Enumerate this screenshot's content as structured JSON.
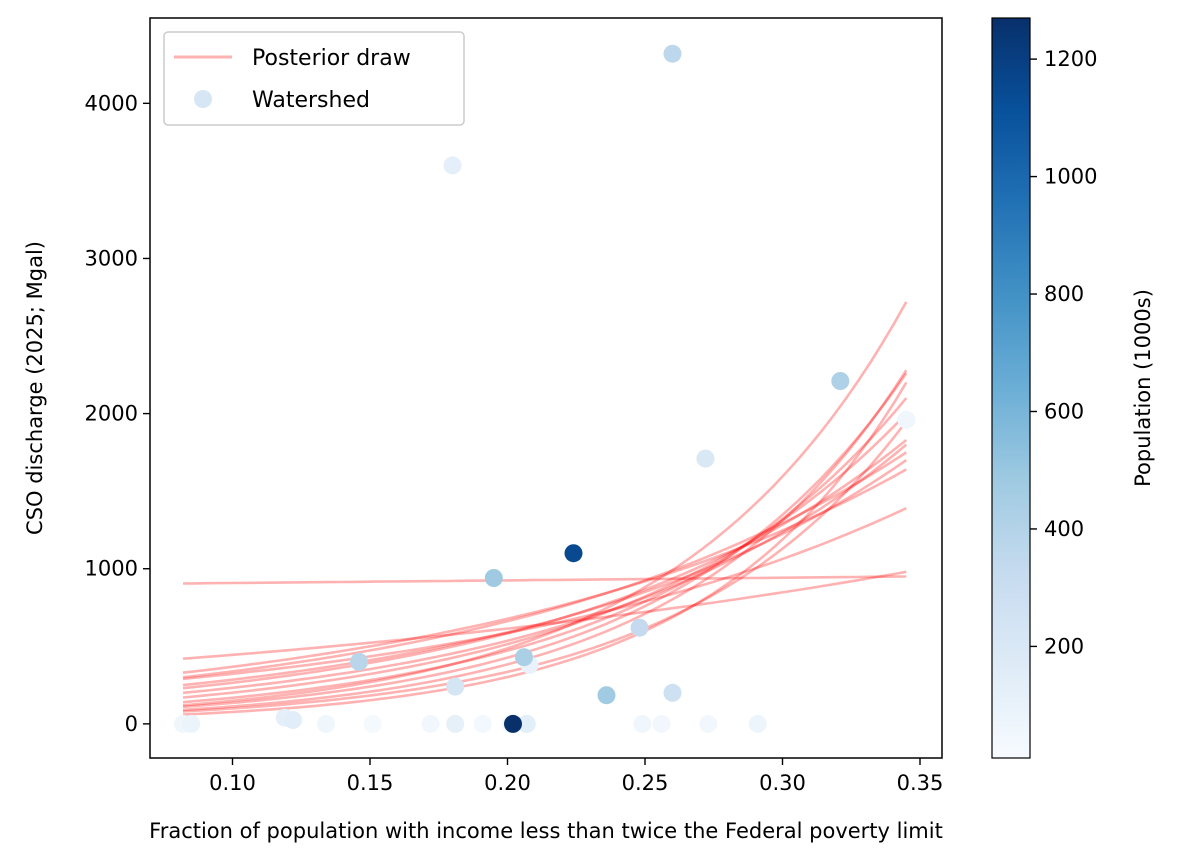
{
  "chart_data": {
    "type": "scatter",
    "xlabel": "Fraction of population with income less than twice the Federal poverty limit",
    "ylabel": "CSO discharge (2025; Mgal)",
    "xlim": [
      0.07,
      0.358
    ],
    "ylim": [
      -220,
      4550
    ],
    "xticks": [
      0.1,
      0.15,
      0.2,
      0.25,
      0.3,
      0.35
    ],
    "xtick_labels": [
      "0.10",
      "0.15",
      "0.20",
      "0.25",
      "0.30",
      "0.35"
    ],
    "yticks": [
      0,
      1000,
      2000,
      3000,
      4000
    ],
    "ytick_labels": [
      "0",
      "1000",
      "2000",
      "3000",
      "4000"
    ],
    "legend": {
      "location": "top-left",
      "line_label": "Posterior draw",
      "point_label": "Watershed"
    },
    "colorbar": {
      "label": "Population (1000s)",
      "range": [
        10,
        1270
      ],
      "ticks": [
        200,
        400,
        600,
        800,
        1000,
        1200
      ],
      "tick_labels": [
        "200",
        "400",
        "600",
        "800",
        "1000",
        "1200"
      ]
    },
    "colors": {
      "line": "#ff0000",
      "cmap_low": "#f7fbff",
      "cmap_high": "#08306b"
    },
    "line_x_range": [
      0.082,
      0.345
    ],
    "posterior_draws": [
      {
        "y_start": 905,
        "y_end": 950
      },
      {
        "y_start": 420,
        "y_end": 980
      },
      {
        "y_start": 290,
        "y_end": 1390
      },
      {
        "y_start": 330,
        "y_end": 1640
      },
      {
        "y_start": 120,
        "y_end": 2720
      },
      {
        "y_start": 60,
        "y_end": 2200
      },
      {
        "y_start": 90,
        "y_end": 2280
      },
      {
        "y_start": 250,
        "y_end": 1700
      },
      {
        "y_start": 170,
        "y_end": 2000
      },
      {
        "y_start": 200,
        "y_end": 1800
      },
      {
        "y_start": 80,
        "y_end": 1950
      },
      {
        "y_start": 140,
        "y_end": 2100
      },
      {
        "y_start": 230,
        "y_end": 1830
      },
      {
        "y_start": 110,
        "y_end": 2260
      },
      {
        "y_start": 300,
        "y_end": 1750
      }
    ],
    "watersheds": [
      {
        "x": 0.26,
        "y": 4320,
        "pop": 360
      },
      {
        "x": 0.18,
        "y": 3600,
        "pop": 130
      },
      {
        "x": 0.321,
        "y": 2210,
        "pop": 420
      },
      {
        "x": 0.345,
        "y": 1960,
        "pop": 60
      },
      {
        "x": 0.272,
        "y": 1710,
        "pop": 200
      },
      {
        "x": 0.224,
        "y": 1100,
        "pop": 1150
      },
      {
        "x": 0.195,
        "y": 940,
        "pop": 480
      },
      {
        "x": 0.248,
        "y": 620,
        "pop": 330
      },
      {
        "x": 0.206,
        "y": 430,
        "pop": 430
      },
      {
        "x": 0.208,
        "y": 380,
        "pop": 100
      },
      {
        "x": 0.146,
        "y": 400,
        "pop": 380
      },
      {
        "x": 0.181,
        "y": 240,
        "pop": 230
      },
      {
        "x": 0.26,
        "y": 200,
        "pop": 270
      },
      {
        "x": 0.236,
        "y": 185,
        "pop": 470
      },
      {
        "x": 0.119,
        "y": 40,
        "pop": 130
      },
      {
        "x": 0.122,
        "y": 25,
        "pop": 150
      },
      {
        "x": 0.082,
        "y": 0,
        "pop": 60
      },
      {
        "x": 0.085,
        "y": 0,
        "pop": 80
      },
      {
        "x": 0.134,
        "y": 0,
        "pop": 60
      },
      {
        "x": 0.151,
        "y": 0,
        "pop": 30
      },
      {
        "x": 0.172,
        "y": 0,
        "pop": 50
      },
      {
        "x": 0.181,
        "y": 0,
        "pop": 120
      },
      {
        "x": 0.191,
        "y": 0,
        "pop": 40
      },
      {
        "x": 0.201,
        "y": 0,
        "pop": 20
      },
      {
        "x": 0.202,
        "y": 0,
        "pop": 1270
      },
      {
        "x": 0.207,
        "y": 0,
        "pop": 140
      },
      {
        "x": 0.249,
        "y": 0,
        "pop": 60
      },
      {
        "x": 0.256,
        "y": 0,
        "pop": 45
      },
      {
        "x": 0.273,
        "y": 0,
        "pop": 50
      },
      {
        "x": 0.291,
        "y": 0,
        "pop": 70
      }
    ]
  }
}
